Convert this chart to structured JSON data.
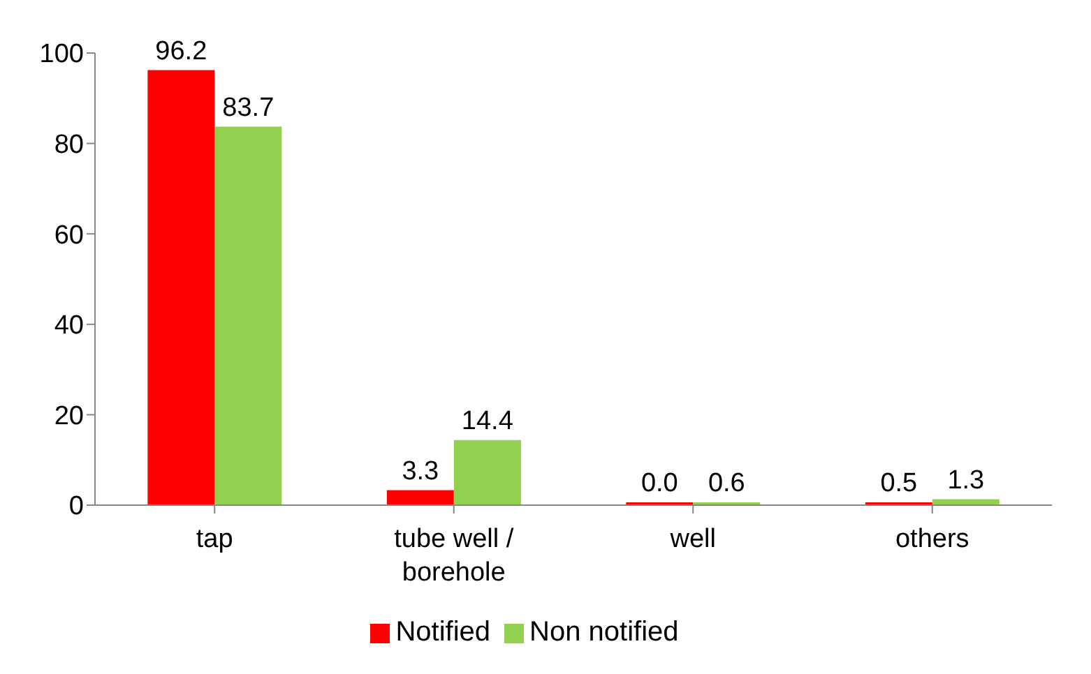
{
  "chart_data": {
    "type": "bar",
    "categories": [
      "tap",
      "tube well / borehole",
      "well",
      "others"
    ],
    "series": [
      {
        "name": "Notified",
        "color": "#ff0000",
        "values": [
          96.2,
          3.3,
          0.0,
          0.5
        ],
        "value_labels": [
          "96.2",
          "3.3",
          "0.0",
          "0.5"
        ]
      },
      {
        "name": "Non notified",
        "color": "#92d050",
        "values": [
          83.7,
          14.4,
          0.6,
          1.3
        ],
        "value_labels": [
          "83.7",
          "14.4",
          "0.6",
          "1.3"
        ]
      }
    ],
    "ylim": [
      0,
      100
    ],
    "yticks": [
      0,
      20,
      40,
      60,
      80,
      100
    ],
    "grid": false,
    "legend": "bottom"
  }
}
